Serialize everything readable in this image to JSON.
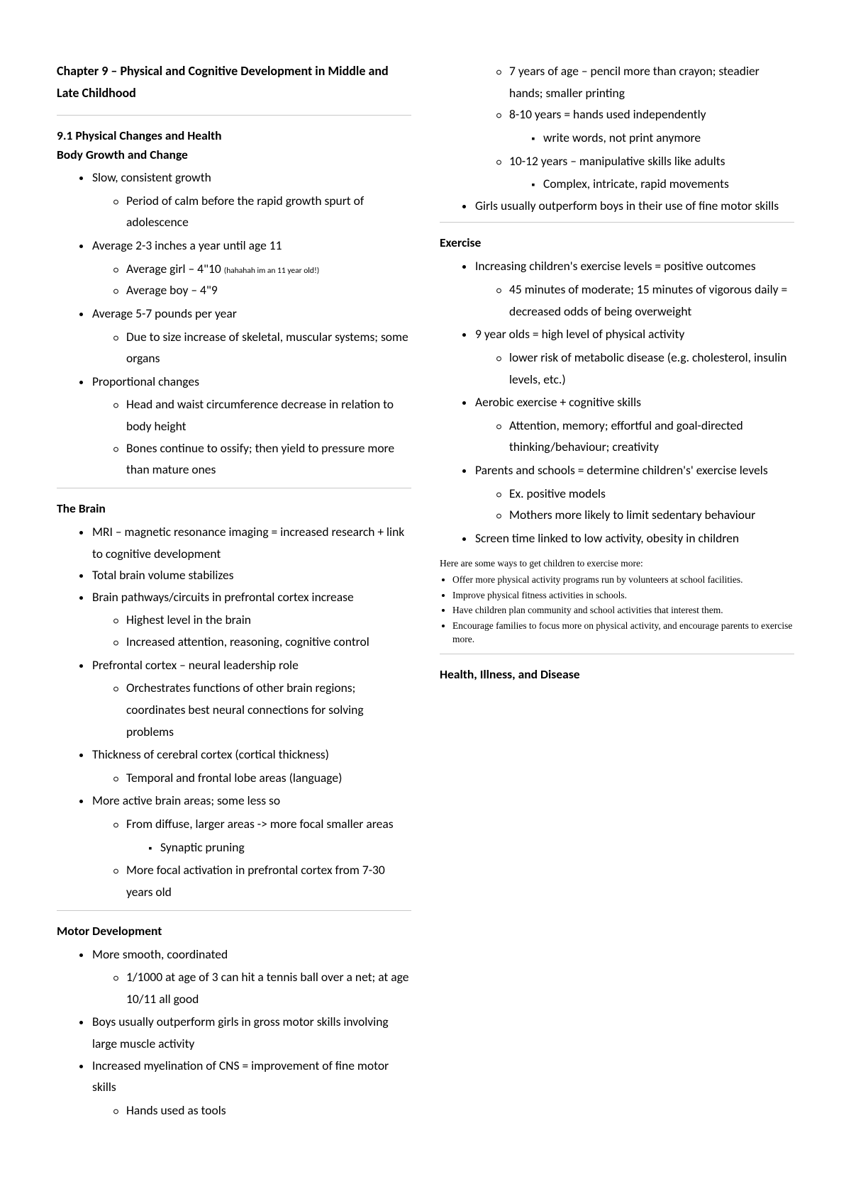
{
  "chapter_title": "Chapter 9 – Physical and Cognitive Development in Middle and Late Childhood",
  "s1": {
    "heading": "9.1 Physical Changes and Health",
    "sub": "Body Growth and Change",
    "b1": "Slow, consistent growth",
    "b1a": "Period of calm before the rapid growth spurt of adolescence",
    "b2": "Average 2-3 inches a year until age 11",
    "b2a": "Average girl – 4\"10 ",
    "b2a_note": "(hahahah im an 11 year old!)",
    "b2b": "Average boy – 4\"9",
    "b3": "Average 5-7 pounds per year",
    "b3a": "Due to size increase of skeletal, muscular systems; some organs",
    "b4": "Proportional changes",
    "b4a": "Head and waist circumference decrease in relation to body height",
    "b4b": "Bones continue to ossify; then yield to pressure more than mature ones"
  },
  "s2": {
    "heading": "The Brain",
    "b1": "MRI – magnetic resonance imaging = increased research + link to cognitive development",
    "b2": "Total brain volume stabilizes",
    "b3": "Brain pathways/circuits in prefrontal cortex increase",
    "b3a": "Highest level in the brain",
    "b3b": "Increased attention, reasoning, cognitive control",
    "b4": "Prefrontal cortex – neural leadership role",
    "b4a": "Orchestrates functions of other brain regions; coordinates best neural connections for solving problems",
    "b5": "Thickness of cerebral cortex (cortical thickness)",
    "b5a": "Temporal and frontal lobe areas (language)",
    "b6": "More active brain areas; some less so",
    "b6a": "From diffuse, larger areas -> more focal smaller areas",
    "b6a1": "Synaptic pruning",
    "b6b": "More focal activation in prefrontal cortex from 7-30 years old"
  },
  "s3": {
    "heading": "Motor Development",
    "b1": "More smooth, coordinated",
    "b1a": "1/1000 at age of 3 can hit a tennis ball over a net; at age 10/11 all good",
    "b2": "Boys usually outperform girls in gross motor skills involving large muscle activity",
    "b3": "Increased myelination of CNS = improvement of fine motor skills",
    "b3a": "Hands used as tools",
    "b3b": "7 years of age – pencil more than crayon; steadier hands; smaller printing",
    "b3c": "8-10 years = hands used independently",
    "b3c1": "write words, not print anymore",
    "b3d": "10-12 years – manipulative skills like adults",
    "b3d1": "Complex, intricate, rapid movements",
    "b4": "Girls usually outperform boys in their use of fine motor skills"
  },
  "s4": {
    "heading": "Exercise",
    "b1": "Increasing children's exercise levels = positive outcomes",
    "b1a": "45 minutes of moderate; 15 minutes of vigorous daily = decreased odds of being overweight",
    "b2": "9 year olds = high level of physical activity",
    "b2a": "lower risk of metabolic disease (e.g. cholesterol, insulin levels, etc.)",
    "b3": "Aerobic exercise + cognitive skills",
    "b3a": "Attention, memory; effortful and goal-directed thinking/behaviour; creativity",
    "b4": "Parents and schools = determine children's' exercise levels",
    "b4a": "Ex. positive models",
    "b4b": "Mothers more likely to limit sedentary behaviour",
    "b5": "Screen time linked to low activity, obesity in children"
  },
  "tips": {
    "intro": "Here are some ways to get children to exercise more:",
    "t1": "Offer more physical activity programs run by volunteers at school facilities.",
    "t2": "Improve physical fitness activities in schools.",
    "t3": "Have children plan community and school activities that interest them.",
    "t4": "Encourage families to focus more on physical activity, and encourage parents to exercise more."
  },
  "s5": {
    "heading": "Health, Illness, and Disease"
  }
}
